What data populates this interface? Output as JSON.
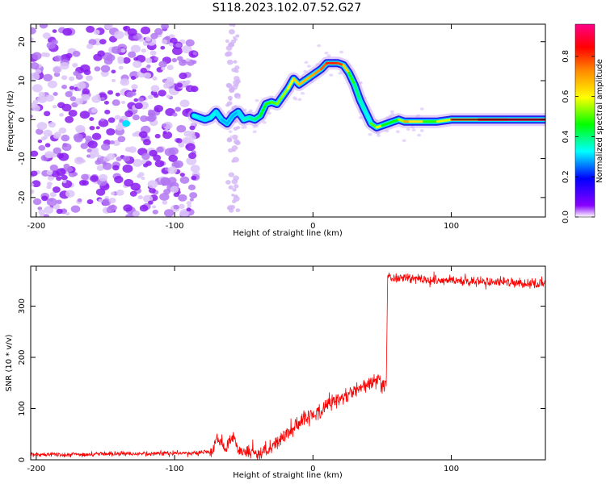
{
  "title": "S118.2023.102.07.52.G27",
  "chart_data": [
    {
      "type": "heatmap",
      "xlabel": "Height of straight line (km)",
      "ylabel": "Frequency (Hz)",
      "xlim": [
        -204,
        168
      ],
      "ylim": [
        -25,
        24.5
      ],
      "x_ticks": [
        -200,
        -100,
        0,
        100
      ],
      "y_ticks": [
        -20,
        -10,
        0,
        10,
        20
      ],
      "colorbar": {
        "label": "Normalized spectral amplitude",
        "range": [
          0,
          0.96
        ],
        "ticks": [
          "0.0",
          "0.2",
          "0.4",
          "0.6",
          "0.8"
        ],
        "colormap": [
          "#ffffff",
          "#8800ff",
          "#0000ff",
          "#00ffff",
          "#00ff00",
          "#ffff00",
          "#ff8800",
          "#ff0000",
          "#ff0088"
        ]
      },
      "ridge": {
        "x": [
          -86,
          -82,
          -78,
          -74,
          -70,
          -66,
          -62,
          -58,
          -54,
          -50,
          -46,
          -42,
          -38,
          -34,
          -30,
          -26,
          -22,
          -18,
          -14,
          -10,
          -6,
          -2,
          2,
          6,
          10,
          14,
          18,
          22,
          26,
          30,
          34,
          38,
          42,
          46,
          50,
          54,
          58,
          62,
          66,
          70,
          80,
          90,
          100,
          120,
          140,
          168
        ],
        "y": [
          1,
          0.5,
          0,
          0.5,
          2,
          0,
          -1,
          1,
          2,
          0,
          0.5,
          0,
          1,
          4,
          4.5,
          4,
          6,
          8,
          10.5,
          9,
          10,
          11,
          12,
          13,
          14.5,
          14.5,
          14.5,
          14,
          12,
          9,
          5,
          2,
          -1,
          -2,
          -1.5,
          -1,
          -0.5,
          0,
          -0.5,
          -0.5,
          -0.5,
          -0.5,
          0,
          0,
          0,
          0
        ]
      },
      "ridge_amplitude": [
        0.35,
        0.35,
        0.3,
        0.35,
        0.35,
        0.3,
        0.3,
        0.3,
        0.3,
        0.35,
        0.4,
        0.4,
        0.45,
        0.5,
        0.5,
        0.55,
        0.55,
        0.6,
        0.65,
        0.7,
        0.7,
        0.7,
        0.75,
        0.75,
        0.85,
        0.85,
        0.85,
        0.8,
        0.55,
        0.45,
        0.4,
        0.35,
        0.35,
        0.7,
        0.5,
        0.45,
        0.5,
        0.45,
        0.7,
        0.75,
        0.55,
        0.45,
        0.75,
        0.85,
        0.9,
        0.95
      ]
    },
    {
      "type": "line",
      "xlabel": "Height of straight line (km)",
      "ylabel": "SNR (10 * v/v)",
      "xlim": [
        -204,
        168
      ],
      "ylim": [
        0,
        378
      ],
      "x_ticks": [
        -200,
        -100,
        0,
        100
      ],
      "y_ticks": [
        0,
        100,
        200,
        300
      ],
      "series": [
        {
          "color": "#ff0000",
          "x": [
            -204,
            -180,
            -160,
            -140,
            -120,
            -100,
            -90,
            -80,
            -72,
            -70,
            -66,
            -62,
            -58,
            -54,
            -50,
            -45,
            -40,
            -36,
            -32,
            -26,
            -20,
            -14,
            -8,
            -2,
            0,
            6,
            12,
            18,
            24,
            30,
            36,
            42,
            46,
            50,
            52,
            53,
            54,
            60,
            70,
            80,
            100,
            120,
            140,
            160,
            168
          ],
          "y": [
            11,
            10,
            11,
            12,
            12,
            13,
            13,
            14,
            16,
            45,
            30,
            25,
            50,
            18,
            15,
            12,
            12,
            12,
            20,
            35,
            50,
            65,
            75,
            85,
            85,
            95,
            110,
            118,
            125,
            135,
            145,
            150,
            155,
            152,
            150,
            145,
            360,
            355,
            355,
            352,
            350,
            348,
            346,
            344,
            345
          ]
        }
      ]
    }
  ]
}
